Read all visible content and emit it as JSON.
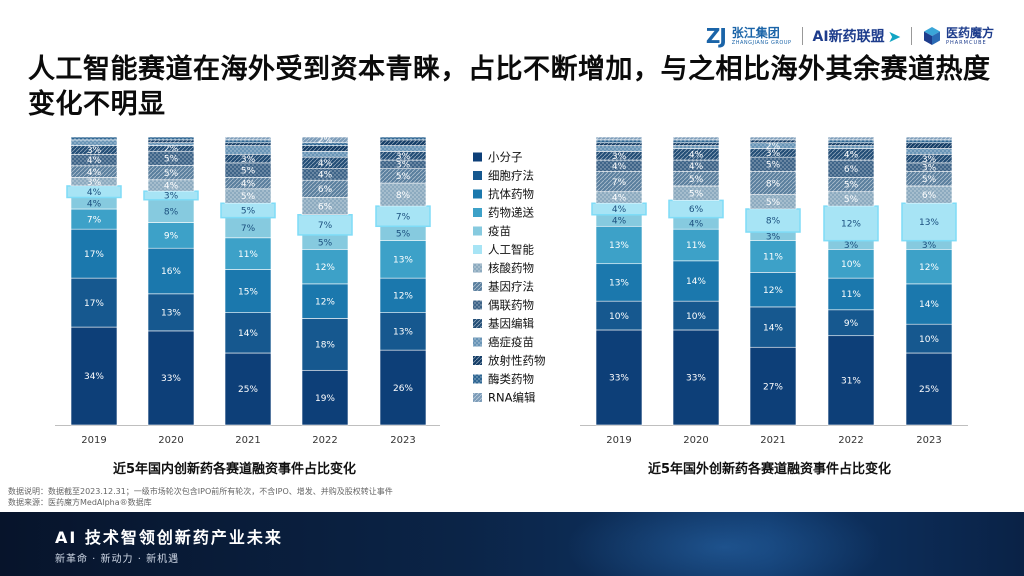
{
  "header": {
    "logo_zj_mark": "ZJ",
    "logo_zj_cn": "张江集团",
    "logo_zj_en": "ZHANGJIANG GROUP",
    "logo_ai": "AI新药联盟",
    "logo_yy_cn": "医药魔方",
    "logo_yy_en": "PHARMCUBE"
  },
  "title": "人工智能赛道在海外受到资本青睐，占比不断增加，与之相比海外其余赛道热度变化不明显",
  "notes": {
    "line1": "数据说明：数据截至2023.12.31；一级市场轮次包含IPO前所有轮次，不含IPO、增发、并购及股权转让事件",
    "line2": "数据来源：医药魔方MedAlpha®数据库"
  },
  "footer": {
    "main": "AI 技术智领创新药产业未来",
    "sub": "新革命 · 新动力 · 新机遇"
  },
  "chart_data": [
    {
      "type": "bar",
      "stacked": true,
      "title": "近5年国内创新药各赛道融资事件占比变化",
      "categories": [
        "2019",
        "2020",
        "2021",
        "2022",
        "2023"
      ],
      "highlight_series": "人工智能",
      "series": [
        {
          "name": "小分子",
          "values": [
            34,
            33,
            25,
            19,
            26
          ],
          "labels": [
            "34%",
            "33%",
            "25%",
            "19%",
            "26%"
          ]
        },
        {
          "name": "细胞疗法",
          "values": [
            17,
            13,
            14,
            18,
            13
          ],
          "labels": [
            "17%",
            "13%",
            "14%",
            "18%",
            "13%"
          ]
        },
        {
          "name": "抗体药物",
          "values": [
            17,
            16,
            15,
            12,
            12
          ],
          "labels": [
            "17%",
            "16%",
            "15%",
            "12%",
            "12%"
          ]
        },
        {
          "name": "药物递送",
          "values": [
            7,
            9,
            11,
            12,
            13
          ],
          "labels": [
            "7%",
            "9%",
            "11%",
            "12%",
            "13%"
          ]
        },
        {
          "name": "疫苗",
          "values": [
            4,
            8,
            7,
            5,
            5
          ],
          "labels": [
            "4%",
            "8%",
            "7%",
            "5%",
            "5%"
          ]
        },
        {
          "name": "人工智能",
          "values": [
            4,
            3,
            5,
            7,
            7
          ],
          "labels": [
            "4%",
            "3%",
            "5%",
            "7%",
            "7%"
          ]
        },
        {
          "name": "核酸药物",
          "values": [
            3,
            4,
            5,
            6,
            8
          ],
          "labels": [
            "3%",
            "4%",
            "5%",
            "6%",
            "8%"
          ]
        },
        {
          "name": "基因疗法",
          "values": [
            4,
            5,
            4,
            6,
            5
          ],
          "labels": [
            "4%",
            "5%",
            "4%",
            "6%",
            "5%"
          ]
        },
        {
          "name": "偶联药物",
          "values": [
            4,
            5,
            5,
            4,
            3
          ],
          "labels": [
            "4%",
            "5%",
            "5%",
            "4%",
            "3%"
          ]
        },
        {
          "name": "基因编辑",
          "values": [
            3,
            2,
            3,
            4,
            3
          ],
          "labels": [
            "3%",
            "2%",
            "3%",
            "4%",
            "3%"
          ]
        },
        {
          "name": "癌症疫苗",
          "values": [
            2,
            1,
            3,
            2,
            2
          ],
          "labels": [
            "",
            "",
            "",
            "",
            ""
          ]
        },
        {
          "name": "放射性药物",
          "values": [
            0,
            1,
            1,
            2,
            2
          ],
          "labels": [
            "",
            "",
            "",
            "",
            ""
          ]
        },
        {
          "name": "酶类药物",
          "values": [
            1,
            1,
            1,
            1,
            1
          ],
          "labels": [
            "",
            "",
            "",
            "",
            ""
          ]
        },
        {
          "name": "RNA编辑",
          "values": [
            0,
            0,
            1,
            2,
            0
          ],
          "labels": [
            "",
            "",
            "",
            "2%",
            ""
          ]
        }
      ]
    },
    {
      "type": "bar",
      "stacked": true,
      "title": "近5年国外创新药各赛道融资事件占比变化",
      "categories": [
        "2019",
        "2020",
        "2021",
        "2022",
        "2023"
      ],
      "highlight_series": "人工智能",
      "series": [
        {
          "name": "小分子",
          "values": [
            33,
            33,
            27,
            31,
            25
          ],
          "labels": [
            "33%",
            "33%",
            "27%",
            "31%",
            "25%"
          ]
        },
        {
          "name": "细胞疗法",
          "values": [
            10,
            10,
            14,
            9,
            10
          ],
          "labels": [
            "10%",
            "10%",
            "14%",
            "9%",
            "10%"
          ]
        },
        {
          "name": "抗体药物",
          "values": [
            13,
            14,
            12,
            11,
            14
          ],
          "labels": [
            "13%",
            "14%",
            "12%",
            "11%",
            "14%"
          ]
        },
        {
          "name": "药物递送",
          "values": [
            13,
            11,
            11,
            10,
            12
          ],
          "labels": [
            "13%",
            "11%",
            "11%",
            "10%",
            "12%"
          ]
        },
        {
          "name": "疫苗",
          "values": [
            4,
            4,
            3,
            3,
            3
          ],
          "labels": [
            "4%",
            "4%",
            "3%",
            "3%",
            "3%"
          ]
        },
        {
          "name": "人工智能",
          "values": [
            4,
            6,
            8,
            12,
            13
          ],
          "labels": [
            "4%",
            "6%",
            "8%",
            "12%",
            "13%"
          ]
        },
        {
          "name": "核酸药物",
          "values": [
            4,
            5,
            5,
            5,
            6
          ],
          "labels": [
            "4%",
            "5%",
            "5%",
            "5%",
            "6%"
          ]
        },
        {
          "name": "基因疗法",
          "values": [
            7,
            5,
            8,
            5,
            5
          ],
          "labels": [
            "7%",
            "5%",
            "8%",
            "5%",
            "5%"
          ]
        },
        {
          "name": "偶联药物",
          "values": [
            4,
            4,
            5,
            6,
            3
          ],
          "labels": [
            "4%",
            "4%",
            "5%",
            "6%",
            "3%"
          ]
        },
        {
          "name": "基因编辑",
          "values": [
            3,
            4,
            3,
            4,
            3
          ],
          "labels": [
            "3%",
            "4%",
            "3%",
            "4%",
            "3%"
          ]
        },
        {
          "name": "癌症疫苗",
          "values": [
            2,
            1,
            2,
            1,
            2
          ],
          "labels": [
            "",
            "",
            "2%",
            "",
            ""
          ]
        },
        {
          "name": "放射性药物",
          "values": [
            1,
            1,
            1,
            1,
            2
          ],
          "labels": [
            "",
            "",
            "",
            "",
            ""
          ]
        },
        {
          "name": "酶类药物",
          "values": [
            1,
            1,
            0,
            1,
            1
          ],
          "labels": [
            "",
            "",
            "",
            "",
            ""
          ]
        },
        {
          "name": "RNA编辑",
          "values": [
            1,
            1,
            1,
            1,
            1
          ],
          "labels": [
            "",
            "",
            "",
            "",
            ""
          ]
        }
      ]
    }
  ],
  "legend": [
    "小分子",
    "细胞疗法",
    "抗体药物",
    "药物递送",
    "疫苗",
    "人工智能",
    "核酸药物",
    "基因疗法",
    "偶联药物",
    "基因编辑",
    "癌症疫苗",
    "放射性药物",
    "酶类药物",
    "RNA编辑"
  ],
  "colors": {
    "小分子": "#0d3f78",
    "细胞疗法": "#16588f",
    "抗体药物": "#1b78ad",
    "药物递送": "#3da1c8",
    "疫苗": "#86cadf",
    "人工智能": "#a7e4f5",
    "核酸药物": "#8caabf",
    "基因疗法": "#5a7f9e",
    "偶联药物": "#3e6488",
    "基因编辑": "#224d76",
    "癌症疫苗": "#6894b6",
    "放射性药物": "#133c66",
    "酶类药物": "#2d6592",
    "RNA编辑": "#7b9bb8",
    "highlight_border": "#7fdcf7"
  }
}
